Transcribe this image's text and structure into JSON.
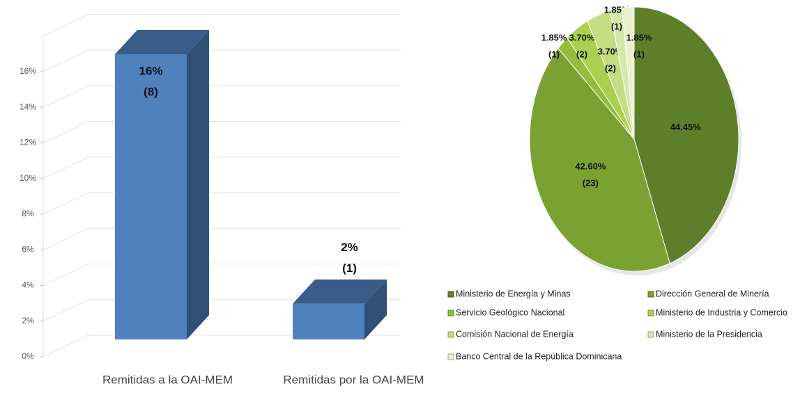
{
  "chart_data": [
    {
      "type": "bar3d",
      "categories": [
        "Remitidas a la OAI-MEM",
        "Remitidas por la OAI-MEM"
      ],
      "values": [
        16,
        2
      ],
      "value_labels": [
        "16%",
        "2%"
      ],
      "count_labels": [
        "(8)",
        "(1)"
      ],
      "color": "#4f81bd",
      "ylim": [
        0,
        18
      ],
      "yticks": [
        {
          "value": 0,
          "label": "0%"
        },
        {
          "value": 2,
          "label": "2%"
        },
        {
          "value": 4,
          "label": "4%"
        },
        {
          "value": 6,
          "label": "6%"
        },
        {
          "value": 8,
          "label": "8%"
        },
        {
          "value": 10,
          "label": "10%"
        },
        {
          "value": 12,
          "label": "12%"
        },
        {
          "value": 14,
          "label": "14%"
        },
        {
          "value": 16,
          "label": "16%"
        }
      ],
      "grid": true
    },
    {
      "type": "pie3d",
      "categories": [
        "Ministerio de Energía y Minas",
        "Dirección General de Minería",
        "Servicio Geológico Nacional",
        "Ministerio de Industria y Comercio",
        "Comisión Nacional de Energía",
        "Ministerio de la Presidencia",
        "Banco Central de la República Dominicana"
      ],
      "values": [
        44.45,
        42.6,
        1.85,
        3.7,
        3.7,
        1.85,
        1.85
      ],
      "value_labels": [
        "44.45%",
        "42.60%",
        "1.85%",
        "3.70%",
        "3.70%",
        "1.85%",
        "1.85%"
      ],
      "count_labels": [
        null,
        "(23)",
        "(1)",
        "(2)",
        "(2)",
        "(1)",
        "(1)"
      ],
      "colors": [
        "#5e7f2a",
        "#7aa232",
        "#93bd3e",
        "#abd04f",
        "#c3dd82",
        "#d6e7aa",
        "#e7f0cf"
      ],
      "legend": "bottom"
    }
  ]
}
